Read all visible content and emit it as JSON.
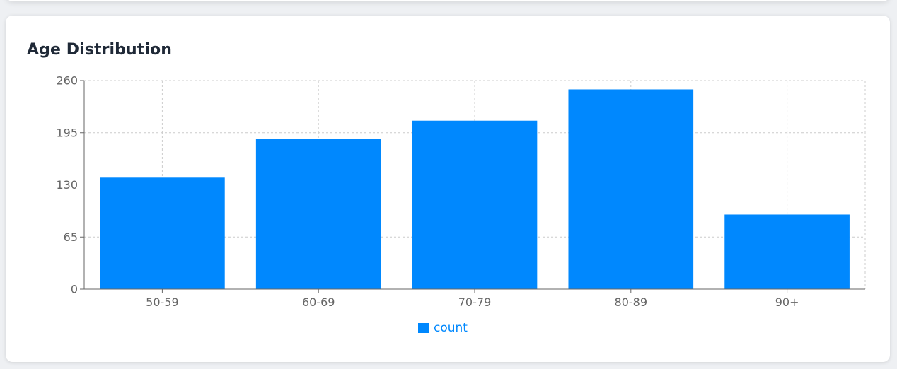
{
  "card": {
    "title": "Age Distribution"
  },
  "chart_data": {
    "type": "bar",
    "title": "Age Distribution",
    "categories": [
      "50-59",
      "60-69",
      "70-79",
      "80-89",
      "90+"
    ],
    "series": [
      {
        "name": "count",
        "values": [
          139,
          187,
          210,
          249,
          93
        ],
        "color": "#0088fe"
      }
    ],
    "ylim": [
      0,
      260
    ],
    "yticks": [
      0,
      65,
      130,
      195,
      260
    ],
    "xlabel": "",
    "ylabel": "",
    "grid": true,
    "grid_style": "dashed",
    "legend_position": "bottom-center",
    "legend": [
      {
        "label": "count",
        "color": "#0088fe"
      }
    ]
  }
}
